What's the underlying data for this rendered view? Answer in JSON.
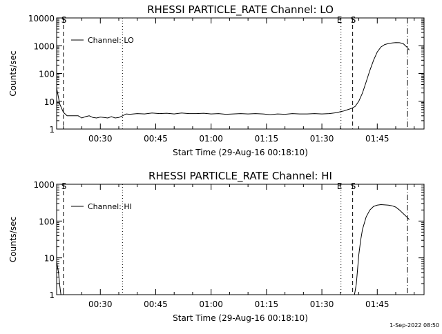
{
  "footer": {
    "stamp": "1-Sep-2022 08:50"
  },
  "chart_data": [
    {
      "type": "line",
      "title": "RHESSI PARTICLE_RATE Channel: LO",
      "xlabel": "Start Time (29-Aug-16 00:18:10)",
      "ylabel": "Counts/sec",
      "yscale": "log",
      "xlim": [
        "00:18:10",
        "01:57:40"
      ],
      "ylim": [
        1,
        10000
      ],
      "xticks": [
        "00:30",
        "00:45",
        "01:00",
        "01:15",
        "01:30",
        "01:45"
      ],
      "yticks": [
        "1",
        "10",
        "100",
        "1000",
        "10000"
      ],
      "legend": {
        "label": "Channel: LO",
        "position": "top-left"
      },
      "grid": false,
      "vlines": [
        {
          "x": "00:20:00",
          "style": "dashed",
          "label": "S"
        },
        {
          "x": "00:36:00",
          "style": "dotted",
          "label": ""
        },
        {
          "x": "01:35:10",
          "style": "dotted",
          "label": "E"
        },
        {
          "x": "01:38:20",
          "style": "dashed",
          "label": "S"
        },
        {
          "x": "01:53:10",
          "style": "dashdot",
          "label": ""
        }
      ],
      "series": [
        {
          "x": [
            "00:18:10",
            "00:19:00",
            "00:20:00",
            "00:21:00",
            "00:22:00",
            "00:23:00",
            "00:24:00",
            "00:25:00",
            "00:26:00",
            "00:27:00",
            "00:28:00",
            "00:29:00",
            "00:30:00",
            "00:31:00",
            "00:32:00",
            "00:33:00",
            "00:34:00",
            "00:35:00",
            "00:36:00",
            "00:37:00",
            "00:38:00",
            "00:40:00",
            "00:42:00",
            "00:44:00",
            "00:46:00",
            "00:48:00",
            "00:50:00",
            "00:52:00",
            "00:54:00",
            "00:56:00",
            "00:58:00",
            "01:00:00",
            "01:02:00",
            "01:04:00",
            "01:06:00",
            "01:08:00",
            "01:10:00",
            "01:12:00",
            "01:14:00",
            "01:16:00",
            "01:18:00",
            "01:20:00",
            "01:22:00",
            "01:24:00",
            "01:26:00",
            "01:28:00",
            "01:30:00",
            "01:32:00",
            "01:34:00",
            "01:35:00",
            "01:36:00",
            "01:37:00",
            "01:38:00",
            "01:39:00",
            "01:40:00",
            "01:41:00",
            "01:42:00",
            "01:43:00",
            "01:44:00",
            "01:45:00",
            "01:46:00",
            "01:47:00",
            "01:48:00",
            "01:49:00",
            "01:50:00",
            "01:51:00",
            "01:52:00",
            "01:53:00",
            "01:53:40"
          ],
          "y": [
            30,
            8,
            4,
            3,
            3,
            3,
            3,
            2.5,
            2.8,
            3,
            2.6,
            2.5,
            2.7,
            2.6,
            2.5,
            2.8,
            2.5,
            2.6,
            3,
            3.5,
            3.4,
            3.6,
            3.5,
            3.8,
            3.6,
            3.7,
            3.5,
            3.8,
            3.6,
            3.6,
            3.7,
            3.5,
            3.6,
            3.4,
            3.5,
            3.6,
            3.5,
            3.6,
            3.5,
            3.3,
            3.5,
            3.4,
            3.6,
            3.5,
            3.5,
            3.6,
            3.5,
            3.6,
            3.9,
            4.2,
            4.5,
            5,
            5.5,
            6.5,
            10,
            20,
            50,
            130,
            300,
            600,
            900,
            1100,
            1200,
            1250,
            1300,
            1280,
            1200,
            900,
            700
          ]
        }
      ]
    },
    {
      "type": "line",
      "title": "RHESSI PARTICLE_RATE Channel: HI",
      "xlabel": "Start Time (29-Aug-16 00:18:10)",
      "ylabel": "Counts/sec",
      "yscale": "log",
      "xlim": [
        "00:18:10",
        "01:57:40"
      ],
      "ylim": [
        1,
        1000
      ],
      "xticks": [
        "00:30",
        "00:45",
        "01:00",
        "01:15",
        "01:30",
        "01:45"
      ],
      "yticks": [
        "1",
        "10",
        "100",
        "1000"
      ],
      "legend": {
        "label": "Channel: HI",
        "position": "top-left"
      },
      "grid": false,
      "vlines": [
        {
          "x": "00:20:00",
          "style": "dashed",
          "label": "S"
        },
        {
          "x": "00:36:00",
          "style": "dotted",
          "label": ""
        },
        {
          "x": "01:35:10",
          "style": "dotted",
          "label": "E"
        },
        {
          "x": "01:38:20",
          "style": "dashed",
          "label": "S"
        },
        {
          "x": "01:53:10",
          "style": "dashdot",
          "label": ""
        }
      ],
      "series": [
        {
          "segments": [
            {
              "x": [
                "00:18:10",
                "00:18:40",
                "00:19:00",
                "00:19:20"
              ],
              "y": [
                8,
                4,
                1.8,
                1
              ]
            },
            {
              "x": [
                "01:38:50",
                "01:39:20",
                "01:39:40",
                "01:40:00",
                "01:40:30",
                "01:41:00",
                "01:42:00",
                "01:43:00",
                "01:44:00",
                "01:45:00",
                "01:46:00",
                "01:47:00",
                "01:48:00",
                "01:49:00",
                "01:50:00",
                "01:51:00",
                "01:52:00",
                "01:53:00",
                "01:53:40"
              ],
              "y": [
                1,
                2,
                5,
                12,
                30,
                60,
                130,
                200,
                250,
                270,
                280,
                275,
                270,
                260,
                240,
                200,
                160,
                130,
                110
              ]
            }
          ]
        }
      ]
    }
  ]
}
